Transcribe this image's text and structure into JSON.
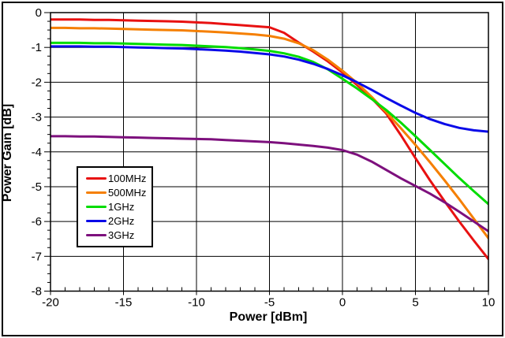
{
  "figure": {
    "background": "#ffffff",
    "border_color": "#000000"
  },
  "chart_data": {
    "type": "line",
    "title": "",
    "xlabel": "Power [dBm]",
    "ylabel": "Power Gain [dB]",
    "xlim": [
      -20,
      10
    ],
    "ylim": [
      -8,
      0
    ],
    "x_major_ticks": [
      -20,
      -15,
      -10,
      -5,
      0,
      5,
      10
    ],
    "x_minor_step": 1,
    "y_major_ticks": [
      0,
      -1,
      -2,
      -3,
      -4,
      -5,
      -6,
      -7,
      -8
    ],
    "y_minor_step": 0.25,
    "grid": {
      "x": true,
      "y": true,
      "color": "#000000"
    },
    "legend_position": "inside-left",
    "x": [
      -20,
      -19,
      -18,
      -17,
      -16,
      -15,
      -14,
      -13,
      -12,
      -11,
      -10,
      -9,
      -8,
      -7,
      -6,
      -5,
      -4,
      -3,
      -2,
      -1,
      0,
      1,
      2,
      3,
      4,
      5,
      6,
      7,
      8,
      9,
      10
    ],
    "series": [
      {
        "name": "100MHz",
        "color": "#e81111",
        "values": [
          -0.2,
          -0.2,
          -0.2,
          -0.21,
          -0.21,
          -0.22,
          -0.23,
          -0.24,
          -0.25,
          -0.26,
          -0.28,
          -0.3,
          -0.33,
          -0.36,
          -0.39,
          -0.42,
          -0.58,
          -0.86,
          -1.12,
          -1.4,
          -1.72,
          -2.08,
          -2.46,
          -2.9,
          -3.52,
          -4.18,
          -4.82,
          -5.42,
          -6.0,
          -6.55,
          -7.08
        ]
      },
      {
        "name": "500MHz",
        "color": "#f57f00",
        "values": [
          -0.44,
          -0.44,
          -0.45,
          -0.45,
          -0.46,
          -0.47,
          -0.48,
          -0.49,
          -0.5,
          -0.51,
          -0.53,
          -0.55,
          -0.57,
          -0.6,
          -0.63,
          -0.67,
          -0.75,
          -0.88,
          -1.08,
          -1.35,
          -1.67,
          -2.02,
          -2.42,
          -2.86,
          -3.32,
          -3.8,
          -4.3,
          -4.82,
          -5.36,
          -5.92,
          -6.48
        ]
      },
      {
        "name": "1GHz",
        "color": "#00dc00",
        "values": [
          -0.87,
          -0.87,
          -0.87,
          -0.88,
          -0.88,
          -0.89,
          -0.9,
          -0.91,
          -0.92,
          -0.93,
          -0.95,
          -0.97,
          -0.99,
          -1.02,
          -1.06,
          -1.1,
          -1.17,
          -1.27,
          -1.42,
          -1.63,
          -1.9,
          -2.18,
          -2.48,
          -2.8,
          -3.16,
          -3.55,
          -3.95,
          -4.35,
          -4.75,
          -5.13,
          -5.5
        ]
      },
      {
        "name": "2GHz",
        "color": "#0a0ae8",
        "values": [
          -0.97,
          -0.97,
          -0.97,
          -0.98,
          -0.98,
          -0.99,
          -1.0,
          -1.01,
          -1.02,
          -1.03,
          -1.05,
          -1.07,
          -1.09,
          -1.12,
          -1.16,
          -1.2,
          -1.26,
          -1.35,
          -1.47,
          -1.62,
          -1.8,
          -2.0,
          -2.22,
          -2.45,
          -2.67,
          -2.88,
          -3.06,
          -3.2,
          -3.31,
          -3.38,
          -3.42
        ]
      },
      {
        "name": "3GHz",
        "color": "#7d107d",
        "values": [
          -3.55,
          -3.55,
          -3.56,
          -3.56,
          -3.57,
          -3.58,
          -3.59,
          -3.6,
          -3.61,
          -3.62,
          -3.63,
          -3.64,
          -3.66,
          -3.68,
          -3.7,
          -3.72,
          -3.75,
          -3.79,
          -3.83,
          -3.88,
          -3.95,
          -4.08,
          -4.28,
          -4.52,
          -4.76,
          -4.98,
          -5.2,
          -5.45,
          -5.72,
          -6.0,
          -6.28
        ]
      }
    ]
  }
}
